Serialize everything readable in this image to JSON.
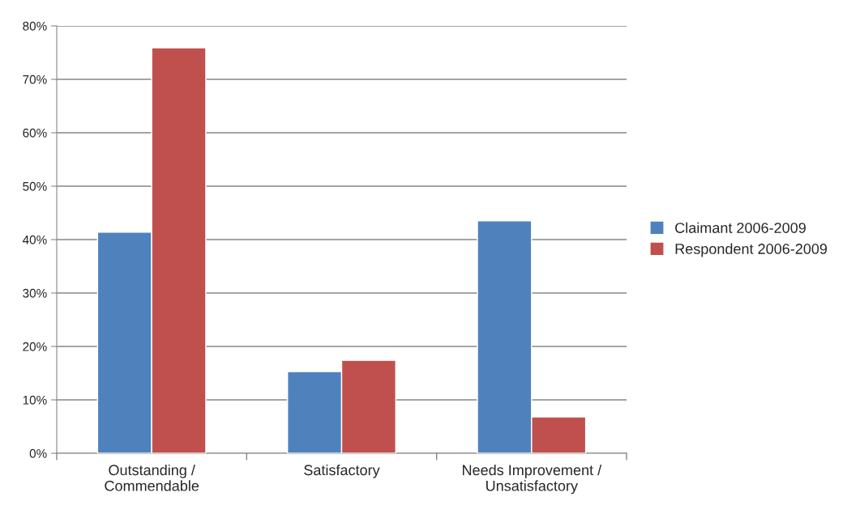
{
  "chart_data": {
    "type": "bar",
    "categories": [
      "Outstanding /\nCommendable",
      "Satisfactory",
      "Needs Improvement /\nUnsatisfactory"
    ],
    "series": [
      {
        "name": "Claimant 2006-2009",
        "color": "#4f81bd",
        "values": [
          41.4,
          15.3,
          43.5
        ]
      },
      {
        "name": "Respondent 2006-2009",
        "color": "#c0504d",
        "values": [
          75.9,
          17.4,
          6.8
        ]
      }
    ],
    "ylim": [
      0,
      80
    ],
    "yticks": [
      {
        "value": 0,
        "label": "0%"
      },
      {
        "value": 10,
        "label": "10%"
      },
      {
        "value": 20,
        "label": "20%"
      },
      {
        "value": 30,
        "label": "30%"
      },
      {
        "value": 40,
        "label": "40%"
      },
      {
        "value": 50,
        "label": "50%"
      },
      {
        "value": 60,
        "label": "60%"
      },
      {
        "value": 70,
        "label": "70%"
      },
      {
        "value": 80,
        "label": "80%"
      }
    ],
    "grid": "y",
    "legend": "right"
  }
}
